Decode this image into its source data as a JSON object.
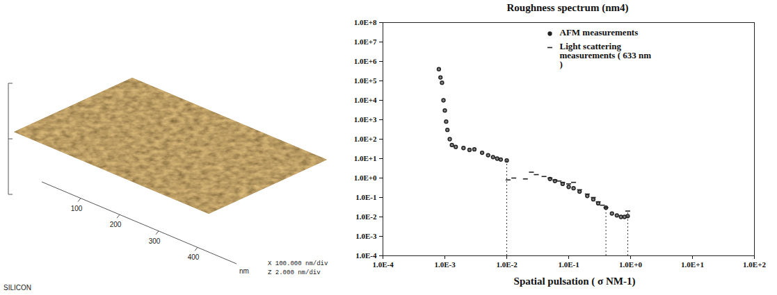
{
  "chart_data": [
    {
      "type": "surface",
      "title": "SILICON",
      "xlabel": "nm",
      "xlim": [
        0,
        500
      ],
      "xticks": [
        100,
        200,
        300,
        400
      ],
      "annotations": [
        "X 100.000 nm/div",
        "Z 2.000 nm/div"
      ],
      "color": "#a0702e"
    },
    {
      "type": "scatter",
      "title": "Roughness spectrum (nm4)",
      "xlabel": "Spatial pulsation  ( σ   NM-1)",
      "log": true,
      "legend": "top-right",
      "xlim": [
        0.0001,
        100
      ],
      "xticks": [
        {
          "value": 0.0001,
          "label": "1.0E-4"
        },
        {
          "value": 0.001,
          "label": "1.0E-3"
        },
        {
          "value": 0.01,
          "label": "1.0E-2"
        },
        {
          "value": 0.1,
          "label": "1.0E-1"
        },
        {
          "value": 1,
          "label": "1.0E+0"
        },
        {
          "value": 10,
          "label": "1.0E+1"
        },
        {
          "value": 100,
          "label": "1.0E+2"
        }
      ],
      "ylim": [
        0.0001,
        100000000
      ],
      "yticks": [
        {
          "value": 0.0001,
          "label": "1.0E-4"
        },
        {
          "value": 0.001,
          "label": "1.0E-3"
        },
        {
          "value": 0.01,
          "label": "1.0E-2"
        },
        {
          "value": 0.1,
          "label": "1.0E-1"
        },
        {
          "value": 1,
          "label": "1.0E+0"
        },
        {
          "value": 10,
          "label": "1.0E+1"
        },
        {
          "value": 100,
          "label": "1.0E+2"
        },
        {
          "value": 1000,
          "label": "1.0E+3"
        },
        {
          "value": 10000,
          "label": "1.0E+4"
        },
        {
          "value": 100000,
          "label": "1.0E+5"
        },
        {
          "value": 1000000,
          "label": "1.0E+6"
        },
        {
          "value": 10000000,
          "label": "1.0E+7"
        },
        {
          "value": 100000000,
          "label": "1.0E+8"
        }
      ],
      "series": [
        {
          "name": "AFM measurements",
          "marker": "circle",
          "color": "#222222",
          "x": [
            0.0008,
            0.00085,
            0.0009,
            0.00095,
            0.001,
            0.00105,
            0.0011,
            0.0012,
            0.0013,
            0.0015,
            0.002,
            0.0025,
            0.003,
            0.004,
            0.005,
            0.006,
            0.007,
            0.008,
            0.01,
            0.05,
            0.06,
            0.08,
            0.1,
            0.12,
            0.15,
            0.2,
            0.25,
            0.3,
            0.4,
            0.5,
            0.6,
            0.7,
            0.8,
            0.9
          ],
          "values": [
            400000,
            150000,
            80000,
            10000,
            3000,
            800,
            300,
            100,
            50,
            40,
            35,
            28,
            30,
            20,
            15,
            12,
            10,
            9,
            8,
            0.9,
            0.7,
            0.5,
            0.35,
            0.3,
            0.2,
            0.12,
            0.08,
            0.05,
            0.03,
            0.015,
            0.012,
            0.01,
            0.01,
            0.011
          ]
        },
        {
          "name": "Light scattering measurements ( 633 nm )",
          "marker": "dash",
          "color": "#222222",
          "x": [
            0.0105,
            0.013,
            0.02,
            0.025,
            0.03,
            0.04,
            0.05,
            0.06,
            0.07,
            0.08,
            0.1,
            0.12,
            0.15,
            0.2,
            0.25,
            0.3,
            0.35,
            0.4,
            0.9
          ],
          "values": [
            0.8,
            1.0,
            0.9,
            2.0,
            1.5,
            1.2,
            1.0,
            0.8,
            0.7,
            0.6,
            0.5,
            0.6,
            0.25,
            0.15,
            0.1,
            0.06,
            0.04,
            0.03,
            0.02
          ]
        }
      ],
      "reference_lines": {
        "line_style": "dotted",
        "x": [
          0.01,
          0.4,
          0.9
        ],
        "values": [
          10,
          0.03,
          0.02
        ]
      }
    }
  ]
}
